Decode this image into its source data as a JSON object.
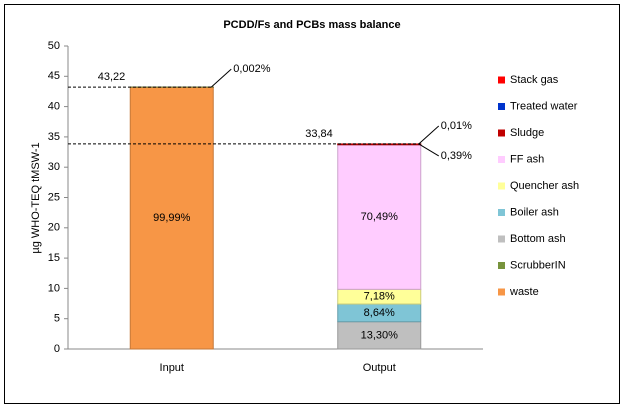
{
  "chart_data": {
    "type": "stacked-bar",
    "title": "PCDD/Fs and PCBs mass balance",
    "y_label": "µg WHO-TEQ tMSW-1",
    "categories": [
      "Input",
      "Output"
    ],
    "series": [
      {
        "name": "waste",
        "color": "#f79646",
        "values": [
          43.22,
          null
        ],
        "value_labels": [
          "99,99%",
          null
        ]
      },
      {
        "name": "ScrubberIN",
        "color": "#77933c",
        "values": [
          0.001,
          null
        ],
        "value_labels": [
          "0,002%",
          null
        ]
      },
      {
        "name": "Bottom ash",
        "color": "#bfbfbf",
        "values": [
          null,
          4.5
        ],
        "value_labels": [
          null,
          "13,30%"
        ]
      },
      {
        "name": "Boiler ash",
        "color": "#7fc5d6",
        "values": [
          null,
          2.92
        ],
        "value_labels": [
          null,
          "8,64%"
        ]
      },
      {
        "name": "Quencher ash",
        "color": "#ffff99",
        "values": [
          null,
          2.43
        ],
        "value_labels": [
          null,
          "7,18%"
        ]
      },
      {
        "name": "FF ash",
        "color": "#ffccff",
        "values": [
          null,
          23.85
        ],
        "value_labels": [
          null,
          "70,49%"
        ]
      },
      {
        "name": "Sludge",
        "color": "#c00000",
        "values": [
          null,
          0.132
        ],
        "value_labels": [
          null,
          "0,39%"
        ]
      },
      {
        "name": "Treated water",
        "color": "#0033cc",
        "values": [
          null,
          null
        ]
      },
      {
        "name": "Stack gas",
        "color": "#ff0000",
        "values": [
          null,
          0.003
        ],
        "value_labels": [
          null,
          "0,01%"
        ]
      }
    ],
    "totals": [
      {
        "value": 43.22,
        "label": "43,22"
      },
      {
        "value": 33.84,
        "label": "33,84"
      }
    ],
    "ylim": [
      0,
      50
    ],
    "yticks": [
      0,
      5,
      10,
      15,
      20,
      25,
      30,
      35,
      40,
      45,
      50
    ],
    "grid": false
  }
}
